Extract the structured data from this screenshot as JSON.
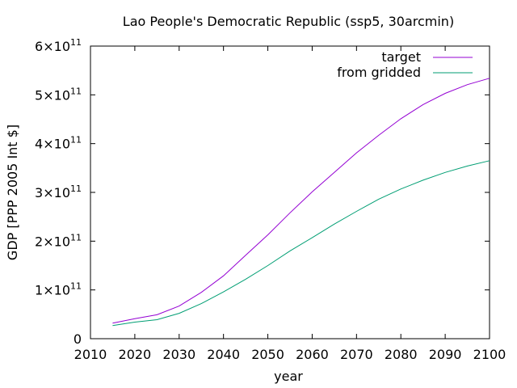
{
  "chart_data": {
    "type": "line",
    "title": "Lao People's Democratic Republic (ssp5, 30arcmin)",
    "xlabel": "year",
    "ylabel": "GDP [PPP 2005 Int $]",
    "xlim": [
      2010,
      2100
    ],
    "ylim": [
      0,
      600000000000
    ],
    "xticks": [
      "2010",
      "2020",
      "2030",
      "2040",
      "2050",
      "2060",
      "2070",
      "2080",
      "2090",
      "2100"
    ],
    "yticks": [
      {
        "value": 0,
        "mantissa": "0",
        "exponent": ""
      },
      {
        "value": 100000000000,
        "mantissa": "1×10",
        "exponent": "11"
      },
      {
        "value": 200000000000,
        "mantissa": "2×10",
        "exponent": "11"
      },
      {
        "value": 300000000000,
        "mantissa": "3×10",
        "exponent": "11"
      },
      {
        "value": 400000000000,
        "mantissa": "4×10",
        "exponent": "11"
      },
      {
        "value": 500000000000,
        "mantissa": "5×10",
        "exponent": "11"
      },
      {
        "value": 600000000000,
        "mantissa": "6×10",
        "exponent": "11"
      }
    ],
    "grid": false,
    "legend_position": "top-right",
    "x": [
      2015,
      2020,
      2025,
      2030,
      2035,
      2040,
      2045,
      2050,
      2055,
      2060,
      2065,
      2070,
      2075,
      2080,
      2085,
      2090,
      2095,
      2100
    ],
    "series": [
      {
        "name": "target",
        "color": "#9400d3",
        "values": [
          32000000000,
          41000000000,
          49000000000,
          67000000000,
          95000000000,
          129000000000,
          171000000000,
          213000000000,
          258000000000,
          301000000000,
          341000000000,
          381000000000,
          417000000000,
          451000000000,
          480000000000,
          503000000000,
          521000000000,
          534000000000
        ]
      },
      {
        "name": "from gridded",
        "color": "#009e73",
        "values": [
          27000000000,
          34000000000,
          39000000000,
          52000000000,
          72000000000,
          96000000000,
          122000000000,
          150000000000,
          180000000000,
          207000000000,
          235000000000,
          261000000000,
          286000000000,
          307000000000,
          325000000000,
          341000000000,
          354000000000,
          365000000000
        ]
      }
    ]
  }
}
